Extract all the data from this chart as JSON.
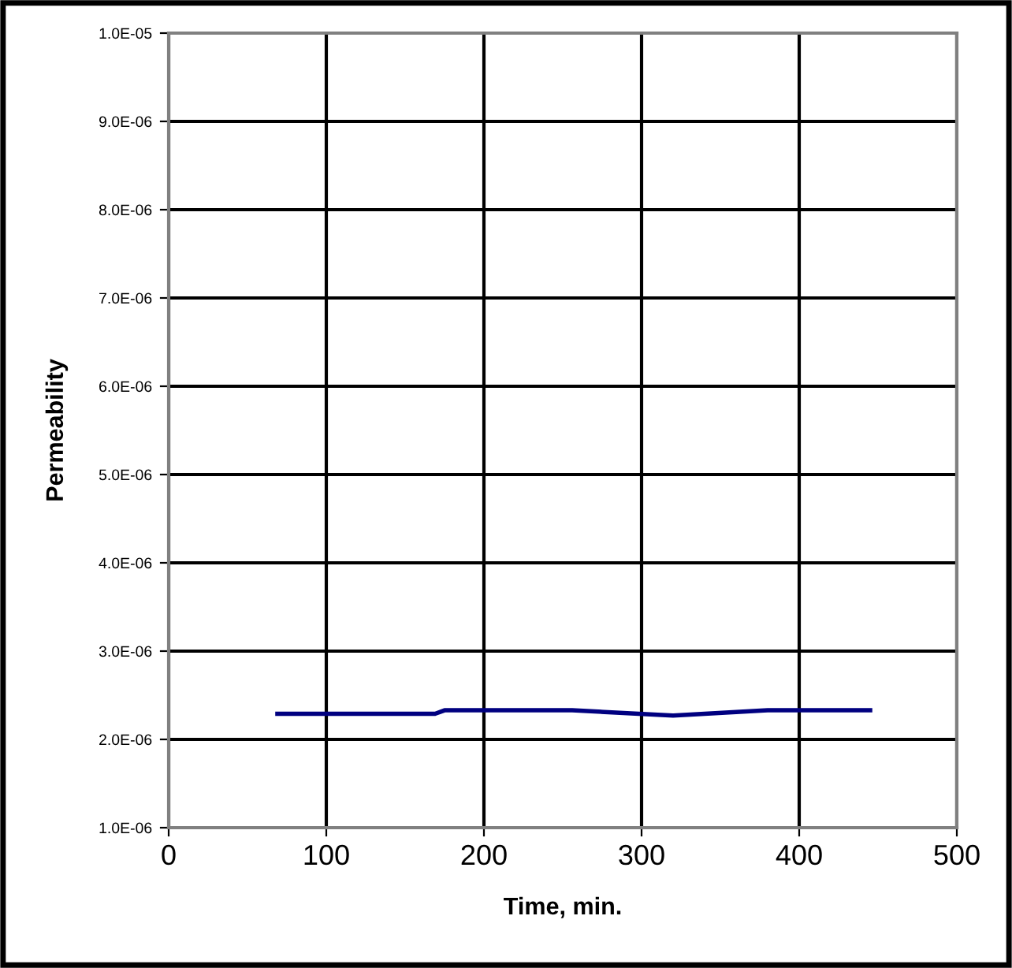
{
  "chart_data": {
    "type": "line",
    "xlabel": "Time, min.",
    "ylabel": "Permeability",
    "x": [
      69,
      169,
      175,
      256,
      320,
      380,
      445
    ],
    "values": [
      2.29e-06,
      2.29e-06,
      2.33e-06,
      2.33e-06,
      2.27e-06,
      2.33e-06,
      2.33e-06
    ],
    "color": "#000080",
    "marker": "none",
    "line_style": "solid",
    "grid": true,
    "xlim": [
      0,
      500
    ],
    "xticks": [
      0,
      100,
      200,
      300,
      400,
      500
    ],
    "ylim": [
      1e-06,
      1e-05
    ],
    "yticks": [
      {
        "value": 1e-06,
        "label": "1.0E-06"
      },
      {
        "value": 2e-06,
        "label": "2.0E-06"
      },
      {
        "value": 3e-06,
        "label": "3.0E-06"
      },
      {
        "value": 4e-06,
        "label": "4.0E-06"
      },
      {
        "value": 5e-06,
        "label": "5.0E-06"
      },
      {
        "value": 6e-06,
        "label": "6.0E-06"
      },
      {
        "value": 7e-06,
        "label": "7.0E-06"
      },
      {
        "value": 8e-06,
        "label": "8.0E-06"
      },
      {
        "value": 9e-06,
        "label": "9.0E-06"
      },
      {
        "value": 1e-05,
        "label": "1.0E-05"
      }
    ]
  }
}
